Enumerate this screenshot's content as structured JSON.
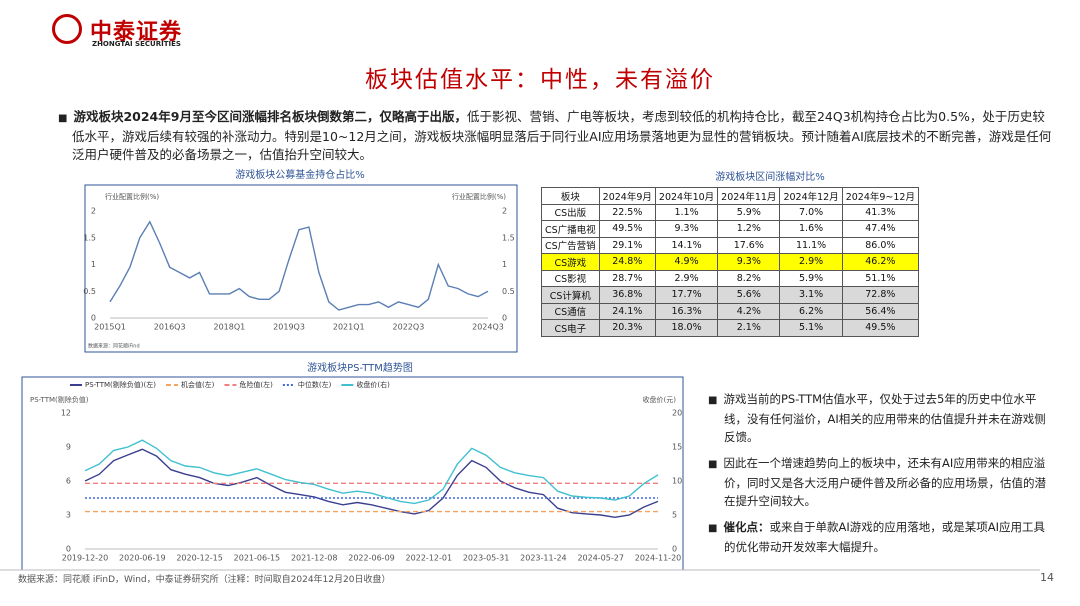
{
  "header": {
    "logo": "中泰证券",
    "logo_en": "ZHONGTAI SECURITIES",
    "title": "板块估值水平：中性，未有溢价"
  },
  "intro": {
    "bold": "游戏板块2024年9月至今区间涨幅排名板块倒数第二，仅略高于出版，",
    "text": "低于影视、营销、广电等板块，考虑到较低的机构持仓比，截至24Q3机构持仓占比为0.5%，处于历史较低水平，游戏后续有较强的补涨动力。特别是10~12月之间，游戏板块涨幅明显落后于同行业AI应用场景落地更为显性的营销板块。预计随着AI底层技术的不断完善，游戏是任何泛用户硬件普及的必备场景之一，估值抬升空间较大。"
  },
  "table": {
    "title": "游戏板块区间涨幅对比%",
    "header": [
      "板块",
      "2024年9月",
      "2024年10月",
      "2024年11月",
      "2024年12月",
      "2024年9~12月"
    ],
    "rows": [
      [
        "CS出版",
        "22.5%",
        "1.1%",
        "5.9%",
        "7.0%",
        "41.3%"
      ],
      [
        "CS广播电视",
        "49.5%",
        "9.3%",
        "1.2%",
        "1.6%",
        "47.4%"
      ],
      [
        "CS广告营销",
        "29.1%",
        "14.1%",
        "17.6%",
        "11.1%",
        "86.0%"
      ],
      [
        "CS游戏",
        "24.8%",
        "4.9%",
        "9.3%",
        "2.9%",
        "46.2%"
      ],
      [
        "CS影视",
        "28.7%",
        "2.9%",
        "8.2%",
        "5.9%",
        "51.1%"
      ],
      [
        "CS计算机",
        "36.8%",
        "17.7%",
        "5.6%",
        "3.1%",
        "72.8%"
      ],
      [
        "CS通信",
        "24.1%",
        "16.3%",
        "4.2%",
        "6.2%",
        "56.4%"
      ],
      [
        "CS电子",
        "20.3%",
        "18.0%",
        "2.1%",
        "5.1%",
        "49.5%"
      ]
    ]
  },
  "bullets": [
    {
      "text": "游戏当前的PS-TTM估值水平，仅处于过去5年的历史中位水平线，没有任何溢价，AI相关的应用带来的估值提升并未在游戏侧反馈。"
    },
    {
      "text": "因此在一个增速趋势向上的板块中，还未有AI应用带来的相应溢价，同时又是各大泛用户硬件普及所必备的应用场景，估值的潜在提升空间较大。"
    },
    {
      "bold": "催化点：",
      "text": "或来自于单款AI游戏的应用落地，或是某项AI应用工具的优化带动开发效率大幅提升。"
    }
  ],
  "footer": {
    "source": "数据来源：同花顺 iFinD，Wind，中泰证券研究所（注释：时间取自2024年12月20日收盘）",
    "page": "14"
  },
  "chart_data": [
    {
      "type": "line",
      "title": "游戏板块公募基金持仓占比%",
      "ylabel": "行业配置比例(%)",
      "y2label": "行业配置比例(%)",
      "source": "数据来源：同花顺iFind",
      "categories": [
        "2015Q1",
        null,
        null,
        null,
        null,
        null,
        "2016Q3",
        null,
        null,
        null,
        null,
        null,
        "2018Q1",
        null,
        null,
        null,
        null,
        null,
        "2019Q3",
        null,
        null,
        null,
        null,
        null,
        "2021Q1",
        null,
        null,
        null,
        null,
        null,
        "2022Q3",
        null,
        null,
        null,
        null,
        null,
        null,
        null,
        "2024Q3"
      ],
      "series": [
        {
          "color": "#5b7fb5",
          "values": [
            0.3,
            0.6,
            0.95,
            1.5,
            1.8,
            1.4,
            0.95,
            0.85,
            0.75,
            0.85,
            0.45,
            0.45,
            0.45,
            0.55,
            0.4,
            0.35,
            0.35,
            0.5,
            1.1,
            1.65,
            1.7,
            0.85,
            0.3,
            0.15,
            0.2,
            0.25,
            0.25,
            0.3,
            0.2,
            0.3,
            0.25,
            0.2,
            0.35,
            1.0,
            0.6,
            0.55,
            0.45,
            0.4,
            0.5
          ]
        }
      ],
      "ylim": [
        0,
        2
      ],
      "yticks": [
        0,
        0.5,
        1,
        1.5,
        2
      ],
      "y2lim": [
        0,
        2
      ],
      "y2ticks": [
        0,
        0.5,
        1,
        1.5,
        2
      ],
      "grid": false
    },
    {
      "type": "line",
      "title": "游戏板块PS-TTM趋势图",
      "ylabel": "PS-TTM(剔除负值)",
      "y2label": "收盘价(元)",
      "legend": "top",
      "categories": [
        "2019-12-20",
        null,
        null,
        null,
        "2020-06-19",
        null,
        null,
        null,
        "2020-12-15",
        null,
        null,
        null,
        "2021-06-15",
        null,
        null,
        null,
        "2021-12-08",
        null,
        null,
        null,
        "2022-06-09",
        null,
        null,
        null,
        "2022-12-01",
        null,
        null,
        null,
        "2023-05-31",
        null,
        null,
        null,
        "2023-11-24",
        null,
        null,
        null,
        "2024-05-27",
        null,
        null,
        null,
        "2024-11-20"
      ],
      "series": [
        {
          "name": "PS-TTM(剔除负值)(左)",
          "color": "#3b3f8f",
          "style": "solid",
          "values": [
            6.0,
            6.6,
            7.8,
            8.3,
            8.8,
            8.2,
            7.0,
            6.6,
            6.3,
            5.8,
            5.6,
            5.9,
            6.3,
            5.6,
            5.0,
            4.8,
            4.6,
            4.2,
            3.9,
            4.1,
            3.9,
            3.6,
            3.3,
            3.1,
            3.4,
            4.5,
            6.5,
            7.8,
            7.2,
            6.0,
            5.4,
            5.0,
            4.8,
            3.6,
            3.2,
            3.1,
            3.0,
            2.8,
            3.0,
            3.7,
            4.2
          ]
        },
        {
          "name": "机会值(左)",
          "color": "#f4a460",
          "style": "dashed",
          "values": [
            3.3,
            3.3,
            3.3,
            3.3,
            3.3,
            3.3,
            3.3,
            3.3,
            3.3,
            3.3,
            3.3,
            3.3,
            3.3,
            3.3,
            3.3,
            3.3,
            3.3,
            3.3,
            3.3,
            3.3,
            3.3,
            3.3,
            3.3,
            3.3,
            3.3,
            3.3,
            3.3,
            3.3,
            3.3,
            3.3,
            3.3,
            3.3,
            3.3,
            3.3,
            3.3,
            3.3,
            3.3,
            3.3,
            3.3,
            3.3,
            3.3
          ]
        },
        {
          "name": "危险值(左)",
          "color": "#f08080",
          "style": "dashed",
          "values": [
            5.8,
            5.8,
            5.8,
            5.8,
            5.8,
            5.8,
            5.8,
            5.8,
            5.8,
            5.8,
            5.8,
            5.8,
            5.8,
            5.8,
            5.8,
            5.8,
            5.8,
            5.8,
            5.8,
            5.8,
            5.8,
            5.8,
            5.8,
            5.8,
            5.8,
            5.8,
            5.8,
            5.8,
            5.8,
            5.8,
            5.8,
            5.8,
            5.8,
            5.8,
            5.8,
            5.8,
            5.8,
            5.8,
            5.8,
            5.8,
            5.8
          ]
        },
        {
          "name": "中位数(左)",
          "color": "#4169e1",
          "style": "dotted",
          "values": [
            4.5,
            4.5,
            4.5,
            4.5,
            4.5,
            4.5,
            4.5,
            4.5,
            4.5,
            4.5,
            4.5,
            4.5,
            4.5,
            4.5,
            4.5,
            4.5,
            4.5,
            4.5,
            4.5,
            4.5,
            4.5,
            4.5,
            4.5,
            4.5,
            4.5,
            4.5,
            4.5,
            4.5,
            4.5,
            4.5,
            4.5,
            4.5,
            4.5,
            4.5,
            4.5,
            4.5,
            4.5,
            4.5,
            4.5,
            4.5,
            4.5
          ]
        },
        {
          "name": "收盘价(右)",
          "color": "#40c0d0",
          "style": "solid",
          "axis": "y2",
          "values": [
            11.5,
            12.5,
            14.5,
            15.0,
            16.0,
            14.8,
            13.0,
            12.2,
            12.0,
            11.2,
            10.8,
            11.3,
            11.8,
            11.0,
            10.2,
            9.8,
            9.5,
            8.8,
            8.2,
            8.5,
            8.2,
            7.6,
            7.0,
            6.7,
            7.2,
            8.8,
            12.5,
            14.8,
            13.8,
            12.0,
            11.2,
            10.8,
            10.5,
            8.5,
            7.8,
            7.6,
            7.5,
            7.2,
            7.8,
            9.6,
            10.9
          ]
        }
      ],
      "ylim": [
        0,
        12
      ],
      "yticks": [
        0,
        3,
        6,
        9,
        12
      ],
      "y2lim": [
        0,
        20
      ],
      "y2ticks": [
        0,
        5,
        10,
        15,
        20
      ],
      "grid": false
    }
  ]
}
